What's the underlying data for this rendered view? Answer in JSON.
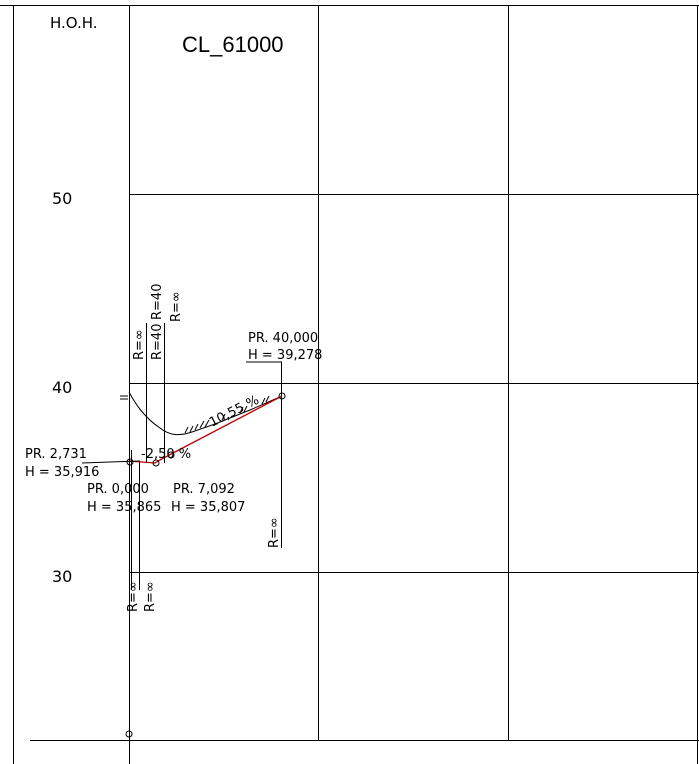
{
  "header": {
    "hoh_label": "H.O.H.",
    "title": "CL_61000"
  },
  "elevation_axis": {
    "ticks": [
      "50",
      "40",
      "30"
    ]
  },
  "points": [
    {
      "station": "PR. 2,731",
      "height": "H = 35,916"
    },
    {
      "station": "PR. 0,000",
      "height": "H = 35,865"
    },
    {
      "station": "PR. 7,092",
      "height": "H = 35,807"
    },
    {
      "station": "PR. 40,000",
      "height": "H = 39,278"
    }
  ],
  "slopes": {
    "left": "-2,50 %",
    "right": "10,55 %"
  },
  "radii": {
    "top_left": "R=∞",
    "top_mid": "R=40",
    "top_mid2": "R=40",
    "top_right": "R=∞",
    "right_vertical": "R=∞",
    "bottom_a": "R=∞",
    "bottom_b": "R=∞"
  },
  "colors": {
    "design_line": "#c00000",
    "grid": "#000000"
  }
}
